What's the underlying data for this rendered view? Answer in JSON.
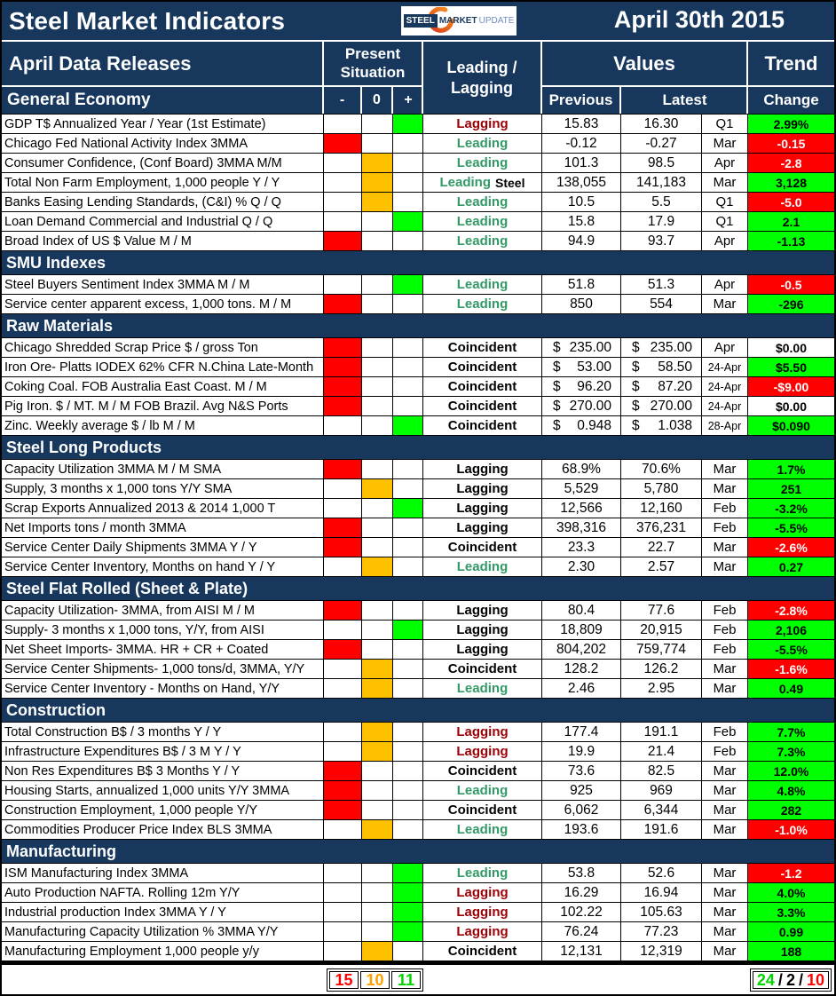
{
  "title_bar": {
    "title": "Steel Market Indicators",
    "date": "April 30th 2015",
    "logo": {
      "part1": "STEEL",
      "part2": "MARKET",
      "part3": "UPDATE"
    }
  },
  "header": {
    "data_releases": "April Data Releases",
    "present_situation": "Present Situation",
    "minus": "-",
    "zero": "0",
    "plus": "+",
    "leading_lagging_line1": "Leading /",
    "leading_lagging_line2": "Lagging",
    "values": "Values",
    "previous": "Previous",
    "latest": "Latest",
    "trend": "Trend",
    "change": "Change"
  },
  "misc": {
    "currency": "$"
  },
  "colors": {
    "navy": "#17375D",
    "cell_red": "#FF0000",
    "cell_orange": "#FFC000",
    "cell_green": "#00FF00",
    "leading_text": "#339966",
    "lagging_text": "#9C0006",
    "coincident_text": "#000000"
  },
  "sections": [
    {
      "name": "General Economy",
      "rows": [
        {
          "label": "GDP T$ Annualized Year / Year (1st Estimate)",
          "situation": "pos",
          "indicator": "Lagging",
          "indicator_style": "maroon",
          "previous": "15.83",
          "latest": "16.30",
          "period": "Q1",
          "change": "2.99%",
          "change_style": "green"
        },
        {
          "label": "Chicago Fed National Activity Index 3MMA",
          "situation": "neg",
          "indicator": "Leading",
          "indicator_style": "green",
          "previous": "-0.12",
          "latest": "-0.27",
          "period": "Mar",
          "change": "-0.15",
          "change_style": "red"
        },
        {
          "label": "Consumer Confidence, (Conf Board) 3MMA M/M",
          "situation": "neu",
          "indicator": "Leading",
          "indicator_style": "green",
          "previous": "101.3",
          "latest": "98.5",
          "period": "Apr",
          "change": "-2.8",
          "change_style": "red"
        },
        {
          "label": "Total Non Farm Employment, 1,000 people Y / Y",
          "situation": "neu",
          "indicator": "Leading",
          "indicator_extra": "Steel",
          "indicator_style": "green",
          "previous": "138,055",
          "latest": "141,183",
          "period": "Mar",
          "change": "3,128",
          "change_style": "green"
        },
        {
          "label": "Banks Easing Lending Standards, (C&I) % Q / Q",
          "situation": "neu",
          "indicator": "Leading",
          "indicator_style": "green",
          "previous": "10.5",
          "latest": "5.5",
          "period": "Q1",
          "change": "-5.0",
          "change_style": "red"
        },
        {
          "label": "Loan Demand Commercial and Industrial Q / Q",
          "situation": "pos",
          "indicator": "Leading",
          "indicator_style": "green",
          "previous": "15.8",
          "latest": "17.9",
          "period": "Q1",
          "change": "2.1",
          "change_style": "green"
        },
        {
          "label": "Broad Index of US $ Value M / M",
          "situation": "neg",
          "indicator": "Leading",
          "indicator_style": "green",
          "previous": "94.9",
          "latest": "93.7",
          "period": "Apr",
          "change": "-1.13",
          "change_style": "green"
        }
      ]
    },
    {
      "name": "SMU Indexes",
      "rows": [
        {
          "label": "Steel Buyers Sentiment Index 3MMA M / M",
          "situation": "pos",
          "indicator": "Leading",
          "indicator_style": "green",
          "previous": "51.8",
          "latest": "51.3",
          "period": "Apr",
          "change": "-0.5",
          "change_style": "red"
        },
        {
          "label": "Service center apparent excess, 1,000 tons. M / M",
          "situation": "neg",
          "indicator": "Leading",
          "indicator_style": "green",
          "previous": "850",
          "latest": "554",
          "period": "Mar",
          "change": "-296",
          "change_style": "green"
        }
      ]
    },
    {
      "name": "Raw Materials",
      "rows": [
        {
          "label": "Chicago Shredded Scrap Price $ / gross Ton",
          "situation": "neg",
          "indicator": "Coincident",
          "indicator_style": "black",
          "money": true,
          "previous": "235.00",
          "latest": "235.00",
          "period": "Apr",
          "change": "$0.00",
          "change_style": "white"
        },
        {
          "label": "Iron Ore- Platts IODEX 62% CFR N.China Late-Month",
          "situation": "neg",
          "indicator": "Coincident",
          "indicator_style": "black",
          "money": true,
          "previous": "53.00",
          "latest": "58.50",
          "period": "24-Apr",
          "change": "$5.50",
          "change_style": "green"
        },
        {
          "label": "Coking Coal. FOB Australia East Coast. M / M",
          "situation": "neg",
          "indicator": "Coincident",
          "indicator_style": "black",
          "money": true,
          "previous": "96.20",
          "latest": "87.20",
          "period": "24-Apr",
          "change": "-$9.00",
          "change_style": "red"
        },
        {
          "label": "Pig Iron. $ / MT. M / M FOB Brazil. Avg N&S Ports",
          "situation": "neg",
          "indicator": "Coincident",
          "indicator_style": "black",
          "money": true,
          "previous": "270.00",
          "latest": "270.00",
          "period": "24-Apr",
          "change": "$0.00",
          "change_style": "white"
        },
        {
          "label": "Zinc. Weekly average $ / lb M / M",
          "situation": "pos",
          "indicator": "Coincident",
          "indicator_style": "black",
          "money": true,
          "previous": "0.948",
          "latest": "1.038",
          "period": "28-Apr",
          "change": "$0.090",
          "change_style": "green"
        }
      ]
    },
    {
      "name": "Steel Long Products",
      "rows": [
        {
          "label": "Capacity Utilization 3MMA  M / M SMA",
          "situation": "neg",
          "indicator": "Lagging",
          "indicator_style": "black",
          "previous": "68.9%",
          "latest": "70.6%",
          "period": "Mar",
          "change": "1.7%",
          "change_style": "green"
        },
        {
          "label": "Supply, 3 months x 1,000 tons Y/Y SMA",
          "situation": "neu",
          "indicator": "Lagging",
          "indicator_style": "black",
          "previous": "5,529",
          "latest": "5,780",
          "period": "Mar",
          "change": "251",
          "change_style": "green"
        },
        {
          "label": "Scrap Exports Annualized 2013 & 2014 1,000 T",
          "situation": "pos",
          "indicator": "Lagging",
          "indicator_style": "black",
          "previous": "12,566",
          "latest": "12,160",
          "period": "Feb",
          "change": "-3.2%",
          "change_style": "green"
        },
        {
          "label": "Net Imports tons / month 3MMA",
          "situation": "neg",
          "indicator": "Lagging",
          "indicator_style": "black",
          "previous": "398,316",
          "latest": "376,231",
          "period": "Feb",
          "change": "-5.5%",
          "change_style": "green"
        },
        {
          "label": "Service Center Daily Shipments 3MMA Y / Y",
          "situation": "neg",
          "indicator": "Coincident",
          "indicator_style": "black",
          "previous": "23.3",
          "latest": "22.7",
          "period": "Mar",
          "change": "-2.6%",
          "change_style": "red"
        },
        {
          "label": "Service Center Inventory, Months on hand Y / Y",
          "situation": "neu",
          "indicator": "Leading",
          "indicator_style": "green",
          "previous": "2.30",
          "latest": "2.57",
          "period": "Mar",
          "change": "0.27",
          "change_style": "green"
        }
      ]
    },
    {
      "name": "Steel Flat Rolled (Sheet & Plate)",
      "rows": [
        {
          "label": "Capacity Utilization- 3MMA, from AISI M / M",
          "situation": "neg",
          "indicator": "Lagging",
          "indicator_style": "black",
          "previous": "80.4",
          "latest": "77.6",
          "period": "Feb",
          "change": "-2.8%",
          "change_style": "red"
        },
        {
          "label": "Supply- 3 months x 1,000 tons, Y/Y, from AISI",
          "situation": "pos",
          "indicator": "Lagging",
          "indicator_style": "black",
          "previous": "18,809",
          "latest": "20,915",
          "period": "Feb",
          "change": "2,106",
          "change_style": "green"
        },
        {
          "label": "Net Sheet Imports- 3MMA. HR + CR + Coated",
          "situation": "neg",
          "indicator": "Lagging",
          "indicator_style": "black",
          "previous": "804,202",
          "latest": "759,774",
          "period": "Feb",
          "change": "-5.5%",
          "change_style": "green"
        },
        {
          "label": "Service Center Shipments- 1,000 tons/d, 3MMA, Y/Y",
          "situation": "neu",
          "indicator": "Coincident",
          "indicator_style": "black",
          "previous": "128.2",
          "latest": "126.2",
          "period": "Mar",
          "change": "-1.6%",
          "change_style": "red"
        },
        {
          "label": "Service Center Inventory - Months on Hand, Y/Y",
          "situation": "neu",
          "indicator": "Leading",
          "indicator_style": "green",
          "previous": "2.46",
          "latest": "2.95",
          "period": "Mar",
          "change": "0.49",
          "change_style": "green"
        }
      ]
    },
    {
      "name": "Construction",
      "rows": [
        {
          "label": "Total Construction B$ /  3 months Y / Y",
          "situation": "neu",
          "indicator": "Lagging",
          "indicator_style": "maroon",
          "previous": "177.4",
          "latest": "191.1",
          "period": "Feb",
          "change": "7.7%",
          "change_style": "green"
        },
        {
          "label": "Infrastructure Expenditures B$ / 3 M   Y / Y",
          "situation": "neu",
          "indicator": "Lagging",
          "indicator_style": "maroon",
          "previous": "19.9",
          "latest": "21.4",
          "period": "Feb",
          "change": "7.3%",
          "change_style": "green"
        },
        {
          "label": "Non Res Expenditures B$  3 Months   Y / Y",
          "situation": "neg",
          "indicator": "Coincident",
          "indicator_style": "black",
          "previous": "73.6",
          "latest": "82.5",
          "period": "Mar",
          "change": "12.0%",
          "change_style": "green"
        },
        {
          "label": "Housing Starts, annualized 1,000 units Y/Y 3MMA",
          "situation": "neg",
          "indicator": "Leading",
          "indicator_style": "green",
          "previous": "925",
          "latest": "969",
          "period": "Mar",
          "change": "4.8%",
          "change_style": "green"
        },
        {
          "label": "Construction Employment, 1,000 people Y/Y",
          "situation": "neg",
          "indicator": "Coincident",
          "indicator_style": "black",
          "previous": "6,062",
          "latest": "6,344",
          "period": "Mar",
          "change": "282",
          "change_style": "green"
        },
        {
          "label": "Commodities Producer Price Index BLS 3MMA",
          "situation": "neu",
          "indicator": "Leading",
          "indicator_style": "green",
          "previous": "193.6",
          "latest": "191.6",
          "period": "Mar",
          "change": "-1.0%",
          "change_style": "red"
        }
      ]
    },
    {
      "name": "Manufacturing",
      "rows": [
        {
          "label": "ISM Manufacturing Index 3MMA",
          "situation": "pos",
          "indicator": "Leading",
          "indicator_style": "green",
          "previous": "53.8",
          "latest": "52.6",
          "period": "Mar",
          "change": "-1.2",
          "change_style": "red"
        },
        {
          "label": "Auto Production NAFTA. Rolling 12m Y/Y",
          "situation": "pos",
          "indicator": "Lagging",
          "indicator_style": "maroon",
          "previous": "16.29",
          "latest": "16.94",
          "period": "Mar",
          "change": "4.0%",
          "change_style": "green"
        },
        {
          "label": "Industrial production Index 3MMA Y / Y",
          "situation": "pos",
          "indicator": "Lagging",
          "indicator_style": "maroon",
          "previous": "102.22",
          "latest": "105.63",
          "period": "Mar",
          "change": "3.3%",
          "change_style": "green"
        },
        {
          "label": "Manufacturing Capacity Utilization % 3MMA Y/Y",
          "situation": "pos",
          "indicator": "Lagging",
          "indicator_style": "maroon",
          "previous": "76.24",
          "latest": "77.23",
          "period": "Mar",
          "change": "0.99",
          "change_style": "green"
        },
        {
          "label": "Manufacturing Employment 1,000 people y/y",
          "situation": "neu",
          "indicator": "Coincident",
          "indicator_style": "black",
          "previous": "12,131",
          "latest": "12,319",
          "period": "Mar",
          "change": "188",
          "change_style": "green"
        }
      ]
    }
  ],
  "footer": {
    "present_counts": [
      {
        "text": "15",
        "color": "red"
      },
      {
        "text": "10",
        "color": "orange"
      },
      {
        "text": "11",
        "color": "green"
      }
    ],
    "trend_counts": [
      {
        "text": "24",
        "color": "green"
      },
      {
        "text": "/",
        "color": "black"
      },
      {
        "text": "2",
        "color": "black"
      },
      {
        "text": "/",
        "color": "black"
      },
      {
        "text": "10",
        "color": "red"
      }
    ]
  }
}
